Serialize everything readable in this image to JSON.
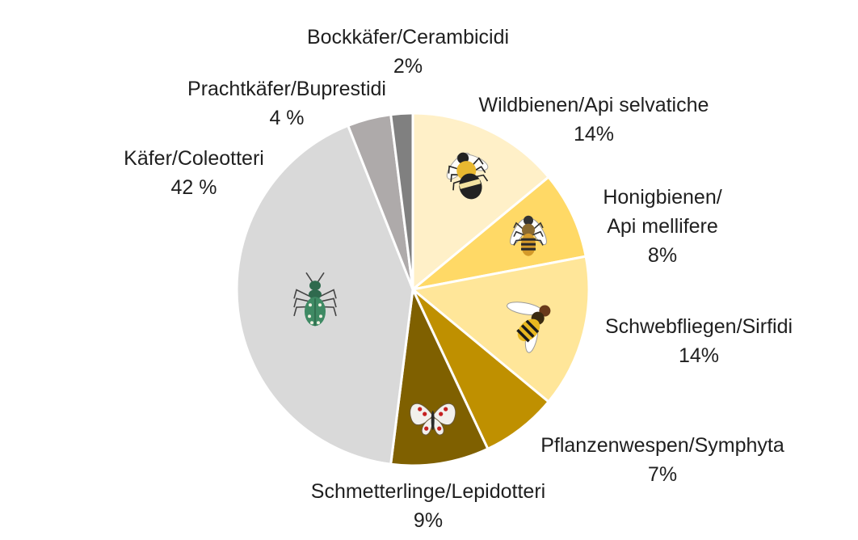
{
  "chart_data": {
    "type": "pie",
    "title": "",
    "start_angle_deg": 0,
    "direction": "clockwise",
    "slices": [
      {
        "name_lines": [
          "Wildbienen/Api selvatiche"
        ],
        "pct_label": "14%",
        "value": 14,
        "color": "#FFF0C8",
        "icon": "bumblebee-icon"
      },
      {
        "name_lines": [
          "Honigbienen/",
          "Api mellifere"
        ],
        "pct_label": "8%",
        "value": 8,
        "color": "#FFD966",
        "icon": "honeybee-icon"
      },
      {
        "name_lines": [
          "Schwebfliegen/Sirfidi"
        ],
        "pct_label": "14%",
        "value": 14,
        "color": "#FFE699",
        "icon": "hoverfly-icon"
      },
      {
        "name_lines": [
          "Pflanzenwespen/Symphyta"
        ],
        "pct_label": "7%",
        "value": 7,
        "color": "#BF9000",
        "icon": ""
      },
      {
        "name_lines": [
          "Schmetterlinge/Lepidotteri"
        ],
        "pct_label": "9%",
        "value": 9,
        "color": "#7F6000",
        "icon": "butterfly-icon"
      },
      {
        "name_lines": [
          "Käfer/Coleotteri"
        ],
        "pct_label": "42 %",
        "value": 42,
        "color": "#D9D9D9",
        "icon": "beetle-icon"
      },
      {
        "name_lines": [
          "Prachtkäfer/Buprestidi"
        ],
        "pct_label": "4 %",
        "value": 4,
        "color": "#AEAAAA",
        "icon": ""
      },
      {
        "name_lines": [
          "Bockkäfer/Cerambicidi"
        ],
        "pct_label": "2%",
        "value": 2,
        "color": "#808080",
        "icon": ""
      }
    ]
  }
}
